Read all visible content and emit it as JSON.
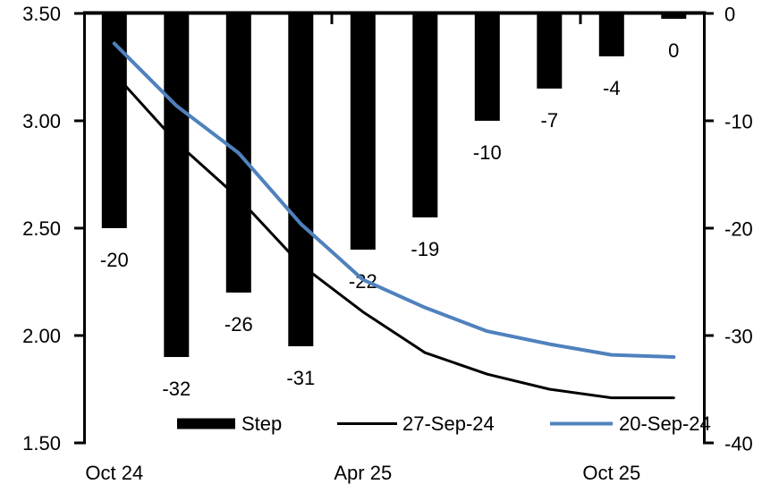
{
  "chart": {
    "background": "#ffffff",
    "text_color": "#000000"
  },
  "chart_data": {
    "type": "combo-bar-line",
    "title": "",
    "grid": false,
    "category_count": 10,
    "x_axis": {
      "tick_labels": [
        {
          "category_index": 0,
          "label": "Oct 24"
        },
        {
          "category_index": 4,
          "label": "Apr 25"
        },
        {
          "category_index": 8,
          "label": "Oct 25"
        }
      ]
    },
    "left_axis": {
      "min": 1.5,
      "max": 3.5,
      "tick_labels": [
        "3.50",
        "3.00",
        "2.50",
        "2.00",
        "1.50"
      ]
    },
    "right_axis": {
      "min": -40,
      "max": 0,
      "tick_labels": [
        "0",
        "-10",
        "-20",
        "-30",
        "-40"
      ]
    },
    "bar_series": {
      "name": "Step",
      "axis": "right",
      "color": "#000000",
      "values": [
        -20,
        -32,
        -26,
        -31,
        -22,
        -19,
        -10,
        -7,
        -4,
        0
      ],
      "data_labels": [
        "-20",
        "-32",
        "-26",
        "-31",
        "-22",
        "-19",
        "-10",
        "-7",
        "-4",
        "0"
      ]
    },
    "line_series": [
      {
        "name": "27-Sep-24",
        "axis": "left",
        "color": "#000000",
        "stroke_width": 3,
        "values": [
          3.22,
          2.9,
          2.64,
          2.33,
          2.11,
          1.92,
          1.82,
          1.75,
          1.71,
          1.71
        ]
      },
      {
        "name": "20-Sep-24",
        "axis": "left",
        "color": "#4f81bd",
        "stroke_width": 4,
        "values": [
          3.36,
          3.07,
          2.85,
          2.52,
          2.26,
          2.13,
          2.02,
          1.96,
          1.91,
          1.9
        ]
      }
    ],
    "legend": {
      "position": "bottom",
      "entries": [
        "Step",
        "27-Sep-24",
        "20-Sep-24"
      ]
    }
  }
}
